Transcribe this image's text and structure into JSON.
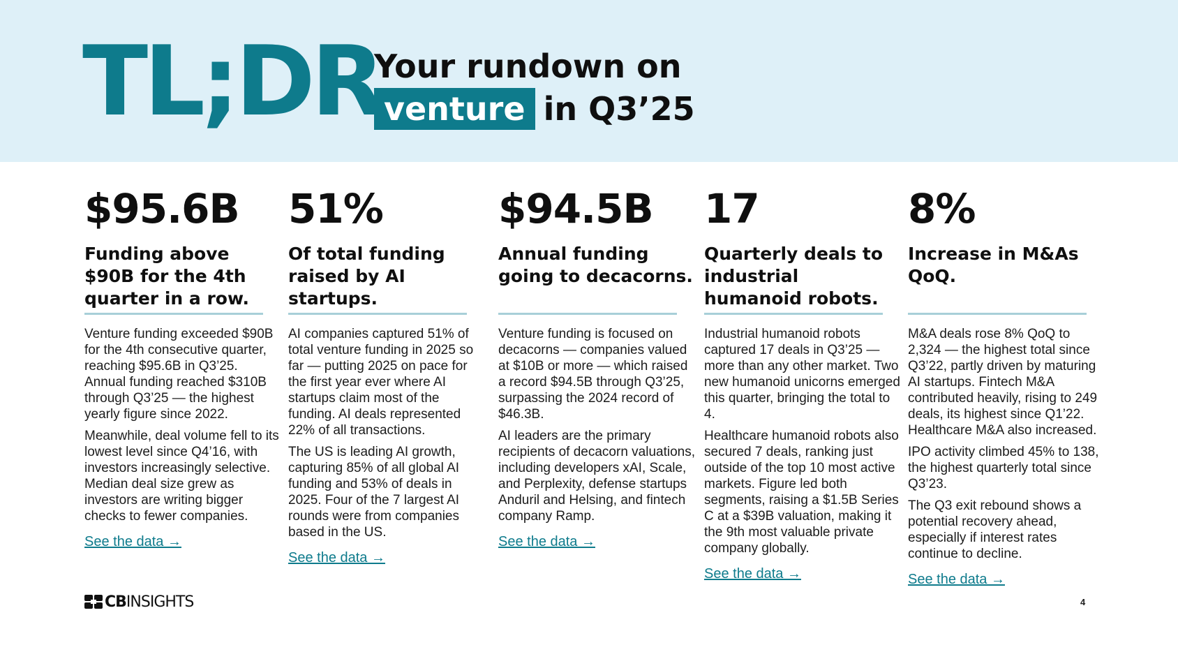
{
  "header": {
    "tldr": "TL;DR",
    "line1": "Your rundown on",
    "highlight": "venture",
    "line2_rest": "in Q3’25"
  },
  "columns": [
    {
      "stat": "$95.6B",
      "headline": "Funding above $90B for the 4th quarter in a row.",
      "paragraphs": [
        "Venture funding exceeded $90B for the 4th consecutive quarter, reaching $95.6B in Q3’25. Annual funding reached $310B through Q3’25 — the highest yearly figure since 2022.",
        "Meanwhile, deal volume fell to its lowest level since Q4’16, with investors increasingly selective. Median deal size grew as investors are writing bigger checks to fewer companies."
      ],
      "link": "See the data →"
    },
    {
      "stat": "51%",
      "headline": "Of total funding raised by AI startups.",
      "paragraphs": [
        "AI companies captured 51% of total venture funding in 2025 so far — putting 2025 on pace for the first year ever where AI startups claim most of the funding. AI deals represented 22% of all transactions.",
        "The US is leading AI growth, capturing 85% of all global AI funding and 53% of deals in 2025. Four of the 7 largest AI rounds were from companies based in the US."
      ],
      "link": "See the data →"
    },
    {
      "stat": "$94.5B",
      "headline": "Annual funding going to decacorns.",
      "paragraphs": [
        "Venture funding is focused on decacorns — companies valued at $10B or more — which raised a record $94.5B through Q3’25, surpassing the 2024 record of $46.3B.",
        "AI leaders are the primary recipients of decacorn valuations, including developers xAI, Scale, and Perplexity, defense startups Anduril and Helsing, and fintech company Ramp."
      ],
      "link": "See the data →"
    },
    {
      "stat": "17",
      "headline": "Quarterly deals to industrial humanoid robots.",
      "paragraphs": [
        "Industrial humanoid robots captured 17 deals in Q3’25 — more than any other market. Two new humanoid unicorns emerged this quarter, bringing the total to 4.",
        "Healthcare humanoid robots also secured 7 deals, ranking just outside of the top 10 most active markets. Figure led both segments, raising a $1.5B Series C at a $39B valuation, making it the 9th most valuable private company globally."
      ],
      "link": "See the data →"
    },
    {
      "stat": "8%",
      "headline": "Increase in M&As QoQ.",
      "paragraphs": [
        "M&A deals rose 8% QoQ to 2,324 — the highest total since Q3’22, partly driven by maturing AI startups. Fintech M&A contributed heavily, rising to 249 deals, its highest since Q1’22. Healthcare M&A also increased.",
        "IPO activity climbed 45% to 138, the highest quarterly total since Q3’23.",
        "The Q3 exit rebound shows a potential recovery ahead, especially if interest rates continue to decline."
      ],
      "link": "See the data →"
    }
  ],
  "footer": {
    "logo_bold": "CB",
    "logo_rest": "INSIGHTS",
    "page_number": "4"
  },
  "colors": {
    "accent": "#0e7b8c",
    "header_bg": "#def0f8",
    "rule": "#a8cfd8"
  }
}
